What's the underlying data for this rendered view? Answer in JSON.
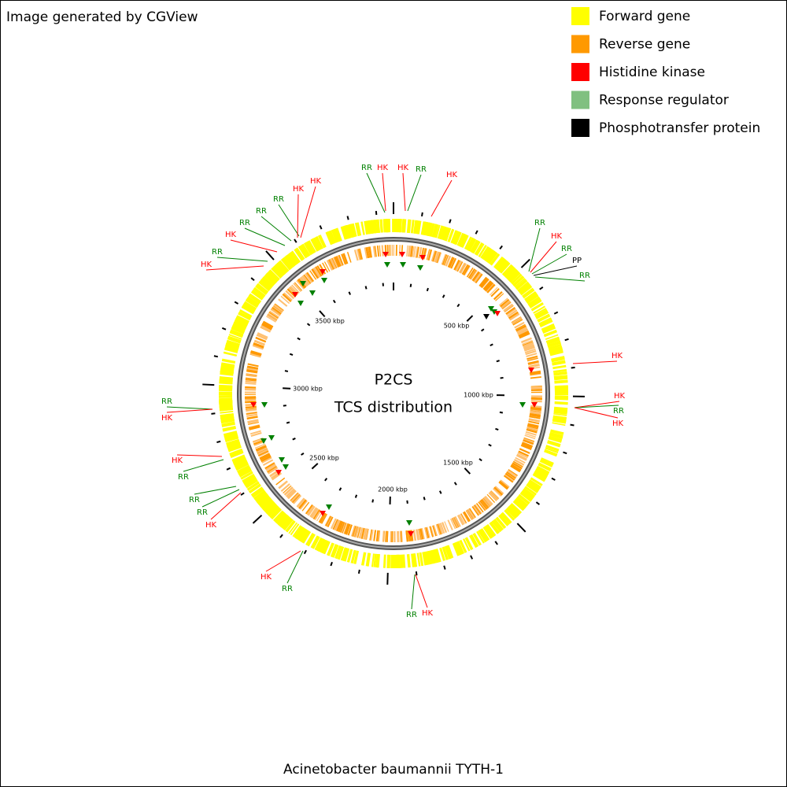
{
  "header": {
    "title": "Image generated by CGView"
  },
  "legend": [
    {
      "label": "Forward gene",
      "color": "#ffff00"
    },
    {
      "label": "Reverse gene",
      "color": "#ff9900"
    },
    {
      "label": "Histidine kinase",
      "color": "#ff0000"
    },
    {
      "label": "Response regulator",
      "color": "#80c080"
    },
    {
      "label": "Phosphotransfer protein",
      "color": "#000000"
    }
  ],
  "center": {
    "title": "P2CS",
    "subtitle": "TCS distribution"
  },
  "scale_labels": [
    "500 kbp",
    "1000 kbp",
    "1500 kbp",
    "2000 kbp",
    "2500 kbp",
    "3000 kbp",
    "3500 kbp"
  ],
  "annotations": [
    "RR",
    "HK",
    "HK",
    "RR",
    "HK",
    "RR",
    "HK",
    "HK",
    "RR",
    "RR",
    "HK",
    "RR",
    "HK",
    "RR",
    "HK",
    "RR",
    "PP",
    "RR",
    "HK",
    "HK",
    "RR",
    "HK",
    "RR",
    "HK",
    "HK",
    "RR",
    "RR",
    "RR",
    "HK",
    "HK",
    "RR",
    "RR",
    "HK"
  ],
  "footer": {
    "title": "Acinetobacter baumannii TYTH-1"
  }
}
